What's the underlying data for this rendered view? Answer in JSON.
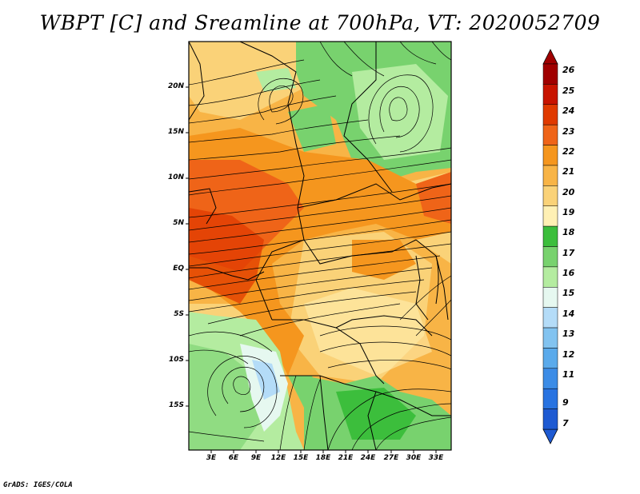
{
  "title": "WBPT [C] and Sreamline at 700hPa, VT: 2020052709",
  "credit": "GrADS: IGES/COLA",
  "map": {
    "variable": "Wet-bulb potential temperature (C) with streamlines",
    "level": "700hPa",
    "valid_time": "2020052709",
    "lat_labels": [
      "20N",
      "15N",
      "10N",
      "5N",
      "EQ",
      "5S",
      "10S",
      "15S"
    ],
    "lon_labels": [
      "3E",
      "6E",
      "9E",
      "12E",
      "15E",
      "18E",
      "21E",
      "24E",
      "27E",
      "30E",
      "33E"
    ]
  },
  "colorbar": {
    "labels": [
      "26",
      "25",
      "24",
      "23",
      "22",
      "21",
      "20",
      "19",
      "18",
      "17",
      "16",
      "15",
      "14",
      "13",
      "12",
      "11",
      "9",
      "7"
    ],
    "colors": [
      "#a00000",
      "#c81400",
      "#e03a00",
      "#ef6418",
      "#f5961e",
      "#f8b446",
      "#fad278",
      "#fff0b4",
      "#3cbe3c",
      "#78d26e",
      "#b4eca0",
      "#e6f8f0",
      "#b4dcf8",
      "#82c3f0",
      "#5aaaeb",
      "#3c8ce6",
      "#2873e1",
      "#1e5ad2"
    ],
    "top_arrow_color": "#a00000",
    "bottom_arrow_color": "#1e5ad2"
  }
}
